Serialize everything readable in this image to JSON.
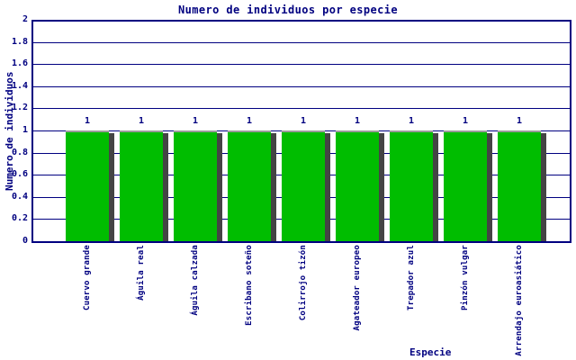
{
  "chart_data": {
    "type": "bar",
    "title": "Numero de individuos por especie",
    "xlabel": "Especie",
    "ylabel": "Numero de individuos",
    "categories": [
      "Cuervo grande",
      "Águila real",
      "Águila calzada",
      "Escribano soteño",
      "Colirrojo tizón",
      "Agateador europeo",
      "Trepador azul",
      "Pinzón vulgar",
      "Arrendajo euroasiático"
    ],
    "values": [
      1,
      1,
      1,
      1,
      1,
      1,
      1,
      1,
      1
    ],
    "ylim": [
      0,
      2
    ],
    "ytick_labels": [
      "2",
      "1.8",
      "1.6",
      "1.4",
      "1.2",
      "1",
      "0.8",
      "0.6",
      "0.4",
      "0.2",
      "0"
    ],
    "ytick_values": [
      2,
      1.8,
      1.6,
      1.4,
      1.2,
      1,
      0.8,
      0.6,
      0.4,
      0.2,
      0
    ],
    "grid": true,
    "legend": null,
    "colors": {
      "bar_fill": "#00bd00",
      "bar_top_edge": "#9a9a9a",
      "bar_shadow": "#444444",
      "axis": "#000080",
      "grid": "#000080",
      "text": "#000080",
      "background": "#ffffff"
    }
  }
}
